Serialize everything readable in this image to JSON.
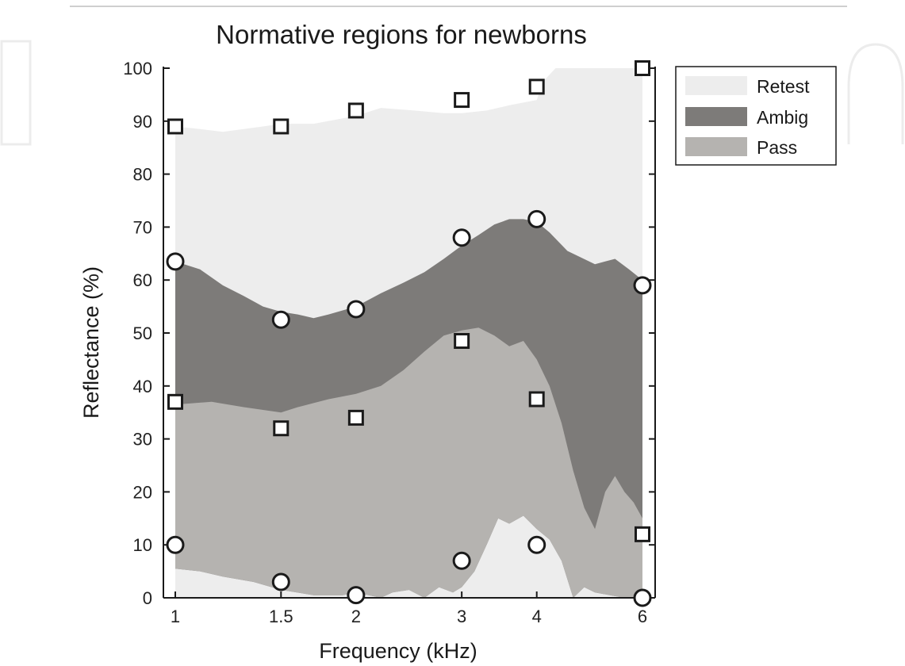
{
  "chart_data": {
    "type": "area",
    "title": "Normative regions for newborns",
    "xlabel": "Frequency (kHz)",
    "ylabel": "Reflectance (%)",
    "x_scale": "log",
    "x_ticks": [
      1,
      1.5,
      2,
      3,
      4,
      6
    ],
    "x_tick_labels": [
      "1",
      "1.5",
      "2",
      "3",
      "4",
      "6"
    ],
    "ylim": [
      0,
      100
    ],
    "y_ticks": [
      0,
      10,
      20,
      30,
      40,
      50,
      60,
      70,
      80,
      90,
      100
    ],
    "y_tick_labels": [
      "0",
      "10",
      "20",
      "30",
      "40",
      "50",
      "60",
      "70",
      "80",
      "90",
      "100"
    ],
    "legend_position": "outside-right-top",
    "legend": [
      {
        "label": "Retest",
        "color": "#ededed"
      },
      {
        "label": "Ambig",
        "color": "#7d7b79"
      },
      {
        "label": "Pass",
        "color": "#b5b3b0"
      }
    ],
    "regions": {
      "retest_upper": {
        "x": [
          1,
          1.1,
          1.2,
          1.3,
          1.4,
          1.5,
          1.7,
          2,
          2.2,
          2.5,
          2.8,
          3,
          3.3,
          3.6,
          4,
          4.1,
          4.3,
          4.6,
          5,
          5.5,
          6
        ],
        "y": [
          89,
          88.5,
          88,
          88.5,
          89,
          89.5,
          89.5,
          91,
          92.5,
          92,
          91.5,
          91.5,
          92,
          93,
          94,
          97.5,
          100,
          100,
          100,
          100,
          100
        ]
      },
      "ambig_upper": {
        "x": [
          1,
          1.1,
          1.2,
          1.3,
          1.4,
          1.5,
          1.6,
          1.7,
          1.8,
          2,
          2.2,
          2.4,
          2.6,
          2.8,
          3,
          3.2,
          3.4,
          3.6,
          3.8,
          4,
          4.2,
          4.5,
          5,
          5.4,
          5.7,
          6
        ],
        "y": [
          63.5,
          62,
          59,
          57,
          55,
          54,
          53.5,
          52.8,
          53.5,
          55,
          57.5,
          59.5,
          61.5,
          64,
          66.5,
          68.5,
          70.5,
          71.5,
          71.5,
          71,
          69,
          65.5,
          63,
          64,
          62,
          60
        ]
      },
      "pass_upper": {
        "x": [
          1,
          1.15,
          1.3,
          1.5,
          1.6,
          1.8,
          2,
          2.2,
          2.4,
          2.6,
          2.8,
          3,
          3.2,
          3.4,
          3.6,
          3.8,
          4,
          4.2,
          4.4,
          4.6,
          4.8,
          5,
          5.2,
          5.4,
          5.6,
          5.8,
          6
        ],
        "y": [
          36.5,
          37,
          36,
          35,
          36,
          37.5,
          38.5,
          40,
          43,
          46.5,
          49.5,
          50.5,
          51,
          49.5,
          47.5,
          48.5,
          45,
          40,
          33,
          24,
          17,
          13,
          20,
          23,
          20,
          18,
          15
        ]
      },
      "pass_lower": {
        "x": [
          1,
          1.1,
          1.2,
          1.35,
          1.5,
          1.7,
          1.9,
          2,
          2.1,
          2.2,
          2.3,
          2.45,
          2.6,
          2.75,
          2.9,
          3,
          3.15,
          3.3,
          3.45,
          3.6,
          3.8,
          4,
          4.2,
          4.4,
          4.6,
          4.8,
          5,
          5.3,
          5.6,
          6
        ],
        "y": [
          5.5,
          5,
          4,
          3,
          1.5,
          0.5,
          0.5,
          1,
          0.5,
          0,
          1,
          1.5,
          0,
          2,
          1,
          2,
          5,
          10,
          15,
          14,
          15.5,
          13,
          11,
          7,
          0,
          2,
          1,
          0.5,
          0,
          0
        ]
      }
    },
    "series": [
      {
        "marker": "square",
        "x": [
          1,
          1.5,
          2,
          3,
          4,
          6
        ],
        "y": [
          89,
          89,
          92,
          94,
          96.5,
          100
        ]
      },
      {
        "marker": "circle",
        "x": [
          1,
          1.5,
          2,
          3,
          4,
          6
        ],
        "y": [
          63.5,
          52.5,
          54.5,
          68,
          71.5,
          59
        ]
      },
      {
        "marker": "square",
        "x": [
          1,
          1.5,
          2,
          3,
          4,
          6
        ],
        "y": [
          37,
          32,
          34,
          48.5,
          37.5,
          12
        ]
      },
      {
        "marker": "circle",
        "x": [
          1,
          1.5,
          2,
          3,
          4,
          6
        ],
        "y": [
          10,
          3,
          0.5,
          7,
          10,
          0
        ]
      }
    ]
  }
}
